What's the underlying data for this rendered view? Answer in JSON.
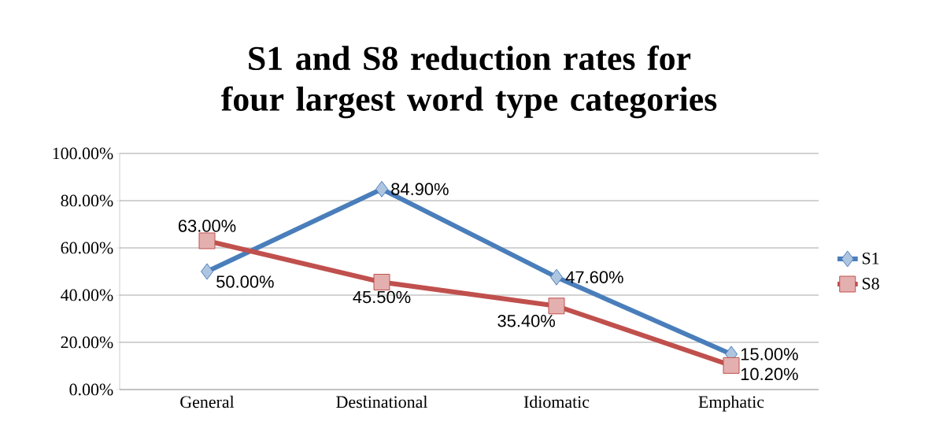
{
  "chart_data": {
    "type": "line",
    "title": "S1 and S8 reduction rates for four largest word type categories",
    "categories": [
      "General",
      "Destinational",
      "Idiomatic",
      "Emphatic"
    ],
    "series": [
      {
        "name": "S1",
        "color": "#4a7ebb",
        "marker": "diamond",
        "values": [
          50.0,
          84.9,
          47.6,
          15.0
        ],
        "value_labels": [
          "50.00%",
          "84.90%",
          "47.60%",
          "15.00%"
        ]
      },
      {
        "name": "S8",
        "color": "#c0504d",
        "marker": "square",
        "values": [
          63.0,
          45.5,
          35.4,
          10.2
        ],
        "value_labels": [
          "63.00%",
          "45.50%",
          "35.40%",
          "10.20%"
        ]
      }
    ],
    "ylim": [
      0,
      100
    ],
    "yticks": [
      {
        "value": 0,
        "label": "0.00%"
      },
      {
        "value": 20,
        "label": "20.00%"
      },
      {
        "value": 40,
        "label": "40.00%"
      },
      {
        "value": 60,
        "label": "60.00%"
      },
      {
        "value": 80,
        "label": "80.00%"
      },
      {
        "value": 100,
        "label": "100.00%"
      }
    ],
    "grid": "y",
    "legend": "right"
  }
}
